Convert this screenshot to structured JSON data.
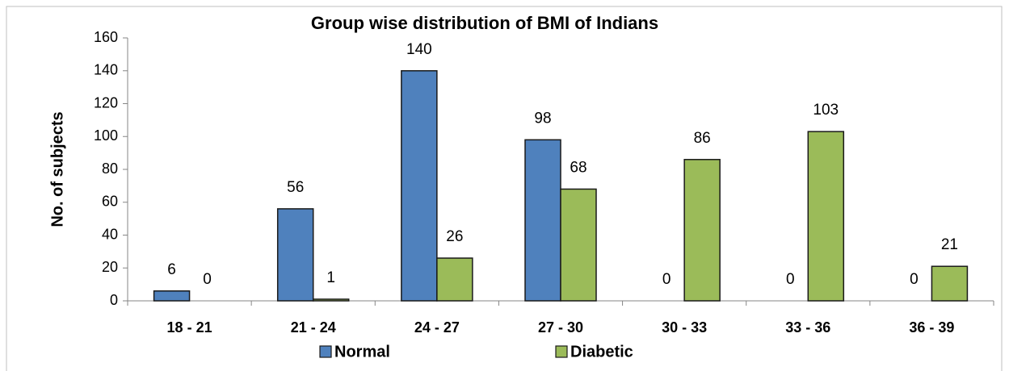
{
  "chart_data": {
    "type": "bar",
    "title": "Group wise distribution of BMI of Indians",
    "y_label": "No. of subjects",
    "categories": [
      "18 - 21",
      "21 - 24",
      "24 - 27",
      "27 - 30",
      "30 - 33",
      "33 - 36",
      "36 - 39"
    ],
    "series": [
      {
        "name": "Normal",
        "color": "#4f81bd",
        "values": [
          6,
          56,
          140,
          98,
          0,
          0,
          0
        ]
      },
      {
        "name": "Diabetic",
        "color": "#9bbb59",
        "values": [
          0,
          1,
          26,
          68,
          86,
          103,
          21
        ]
      }
    ],
    "ylim": [
      0,
      160
    ],
    "yticks": [
      0,
      20,
      40,
      60,
      80,
      100,
      120,
      140,
      160
    ],
    "grid": false,
    "legend": "bottom"
  }
}
